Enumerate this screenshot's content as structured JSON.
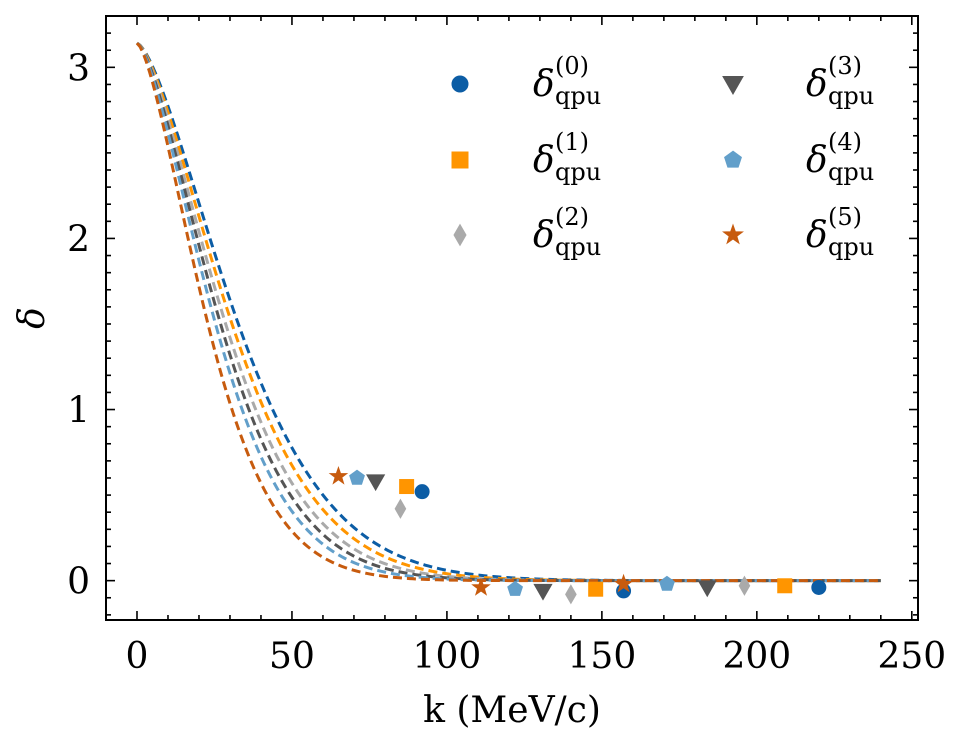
{
  "chart_data": {
    "type": "scatter",
    "title": "",
    "xlabel": "k (MeV/c)",
    "ylabel": "δ",
    "xlim": [
      -10,
      252
    ],
    "ylim": [
      -0.23,
      3.3
    ],
    "xticks": [
      0,
      50,
      100,
      150,
      200,
      250
    ],
    "yticks": [
      0,
      1,
      2,
      3
    ],
    "legend_position": "top-right",
    "series": [
      {
        "name": "δqpu(0)",
        "legend_main": "δ",
        "legend_sub": "qpu",
        "legend_sup": "(0)",
        "color": "#0C5DA5",
        "marker": "circle",
        "points": [
          [
            92,
            0.52
          ],
          [
            157,
            -0.06
          ],
          [
            220,
            -0.04
          ]
        ],
        "curve_decay": 40
      },
      {
        "name": "δqpu(1)",
        "legend_main": "δ",
        "legend_sub": "qpu",
        "legend_sup": "(1)",
        "color": "#FF9500",
        "marker": "square",
        "points": [
          [
            87,
            0.55
          ],
          [
            148,
            -0.05
          ],
          [
            209,
            -0.03
          ]
        ],
        "curve_decay": 37.5
      },
      {
        "name": "δqpu(2)",
        "legend_main": "δ",
        "legend_sub": "qpu",
        "legend_sup": "(2)",
        "color": "#AAAAAA",
        "marker": "diamond",
        "points": [
          [
            85,
            0.42
          ],
          [
            140,
            -0.08
          ],
          [
            196,
            -0.03
          ]
        ],
        "curve_decay": 35
      },
      {
        "name": "δqpu(3)",
        "legend_main": "δ",
        "legend_sub": "qpu",
        "legend_sup": "(3)",
        "color": "#555555",
        "marker": "triangle-down",
        "points": [
          [
            77,
            0.58
          ],
          [
            131,
            -0.06
          ],
          [
            184,
            -0.04
          ]
        ],
        "curve_decay": 33
      },
      {
        "name": "δqpu(4)",
        "legend_main": "δ",
        "legend_sub": "qpu",
        "legend_sup": "(4)",
        "color": "#629FCA",
        "marker": "pentagon",
        "points": [
          [
            71,
            0.6
          ],
          [
            122,
            -0.05
          ],
          [
            171,
            -0.02
          ]
        ],
        "curve_decay": 31
      },
      {
        "name": "δqpu(5)",
        "legend_main": "δ",
        "legend_sub": "qpu",
        "legend_sup": "(5)",
        "color": "#C75B0E",
        "marker": "star",
        "points": [
          [
            65,
            0.61
          ],
          [
            111,
            -0.04
          ],
          [
            157,
            -0.02
          ]
        ],
        "curve_decay": 28
      }
    ],
    "fit_curves": {
      "style": "dashed",
      "form": "δ(k) = π·exp(-(k/k0)^1.5)",
      "x_range": [
        0,
        240
      ]
    }
  }
}
